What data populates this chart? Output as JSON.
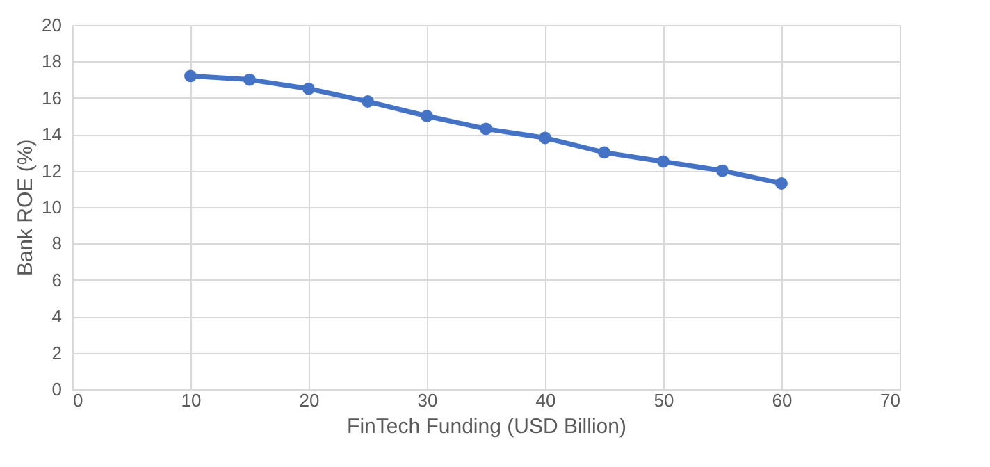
{
  "chart_data": {
    "type": "line",
    "xlabel": "FinTech Funding (USD Billion)",
    "ylabel": "Bank ROE (%)",
    "x": [
      10,
      15,
      20,
      25,
      30,
      35,
      40,
      45,
      50,
      55,
      60
    ],
    "series": [
      {
        "color": "#4472c4",
        "values": [
          17.2,
          17.0,
          16.5,
          15.8,
          15.0,
          14.3,
          13.8,
          13.0,
          12.5,
          12.0,
          11.3
        ]
      }
    ],
    "xlim": [
      0,
      70
    ],
    "xticks": [
      0,
      10,
      20,
      30,
      40,
      50,
      60,
      70
    ],
    "ylim": [
      0,
      20
    ],
    "yticks": [
      0,
      2,
      4,
      6,
      8,
      10,
      12,
      14,
      16,
      18,
      20
    ],
    "grid": true,
    "marker": "circle",
    "line_style": "solid"
  }
}
